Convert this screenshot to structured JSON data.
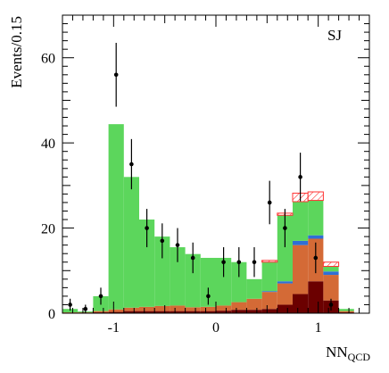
{
  "chart_data": {
    "type": "bar",
    "stacked": true,
    "label": "SJ",
    "xlabel": "NN",
    "xlabel_sub": "QCD",
    "ylabel": "Events/0.15",
    "xlim": [
      -1.5,
      1.5
    ],
    "ylim": [
      0,
      70
    ],
    "x_ticks": [
      -1,
      0,
      1
    ],
    "x_tick_labels": [
      "-1",
      "0",
      "1"
    ],
    "y_ticks": [
      0,
      20,
      40,
      60
    ],
    "y_tick_labels": [
      "0",
      "20",
      "40",
      "60"
    ],
    "bin_edges": [
      -1.5,
      -1.35,
      -1.2,
      -1.05,
      -0.9,
      -0.75,
      -0.6,
      -0.45,
      -0.3,
      -0.15,
      0.0,
      0.15,
      0.3,
      0.45,
      0.6,
      0.75,
      0.9,
      1.05,
      1.2,
      1.35,
      1.5
    ],
    "series": [
      {
        "color": "#6b0000",
        "values": [
          0,
          0,
          0.2,
          0.3,
          0.5,
          0.5,
          0.5,
          0.5,
          0.5,
          0.5,
          0.6,
          0.8,
          0.8,
          1.0,
          2.0,
          4.5,
          7.5,
          3.0,
          0.2,
          0
        ]
      },
      {
        "color": "#d46a36",
        "values": [
          0.2,
          0.2,
          0.3,
          0.6,
          0.8,
          1.0,
          1.2,
          1.3,
          0.9,
          1.0,
          1.2,
          1.8,
          2.6,
          4.0,
          5.0,
          11.5,
          10.0,
          6.0,
          0.3,
          0
        ]
      },
      {
        "color": "#2f6fd6",
        "values": [
          0,
          0,
          0,
          0,
          0,
          0,
          0,
          0,
          0,
          0,
          0,
          0,
          0,
          0.2,
          0.5,
          1.0,
          0.8,
          0.8,
          0,
          0
        ]
      },
      {
        "color": "#5cd65c",
        "values": [
          0.8,
          0.2,
          3.5,
          43.5,
          30.7,
          20.5,
          16.3,
          13.7,
          12.5,
          11.5,
          11.2,
          9.4,
          4.6,
          6.8,
          15.5,
          9.2,
          8.2,
          1.2,
          0.5,
          0
        ]
      },
      {
        "color": "#ffffff",
        "hatch": "#ff3333",
        "values": [
          0,
          0,
          0,
          0,
          0,
          0,
          0,
          0,
          0,
          0,
          0,
          0,
          0,
          0.4,
          0.5,
          2.0,
          2.0,
          1.0,
          0,
          0
        ]
      }
    ],
    "data_points": {
      "x": [
        -1.425,
        -1.275,
        -1.125,
        -0.975,
        -0.825,
        -0.675,
        -0.525,
        -0.375,
        -0.225,
        -0.075,
        0.075,
        0.225,
        0.375,
        0.525,
        0.675,
        0.825,
        0.975,
        1.125
      ],
      "y": [
        2,
        1,
        4,
        56,
        35,
        20,
        17,
        16,
        13,
        4,
        12,
        12,
        12,
        26,
        20,
        32,
        13,
        2
      ],
      "err": [
        1.4,
        1.0,
        2.0,
        7.5,
        5.9,
        4.5,
        4.1,
        4.0,
        3.6,
        2.0,
        3.5,
        3.5,
        3.5,
        5.1,
        4.5,
        5.7,
        3.6,
        1.4
      ]
    },
    "grid": false
  }
}
